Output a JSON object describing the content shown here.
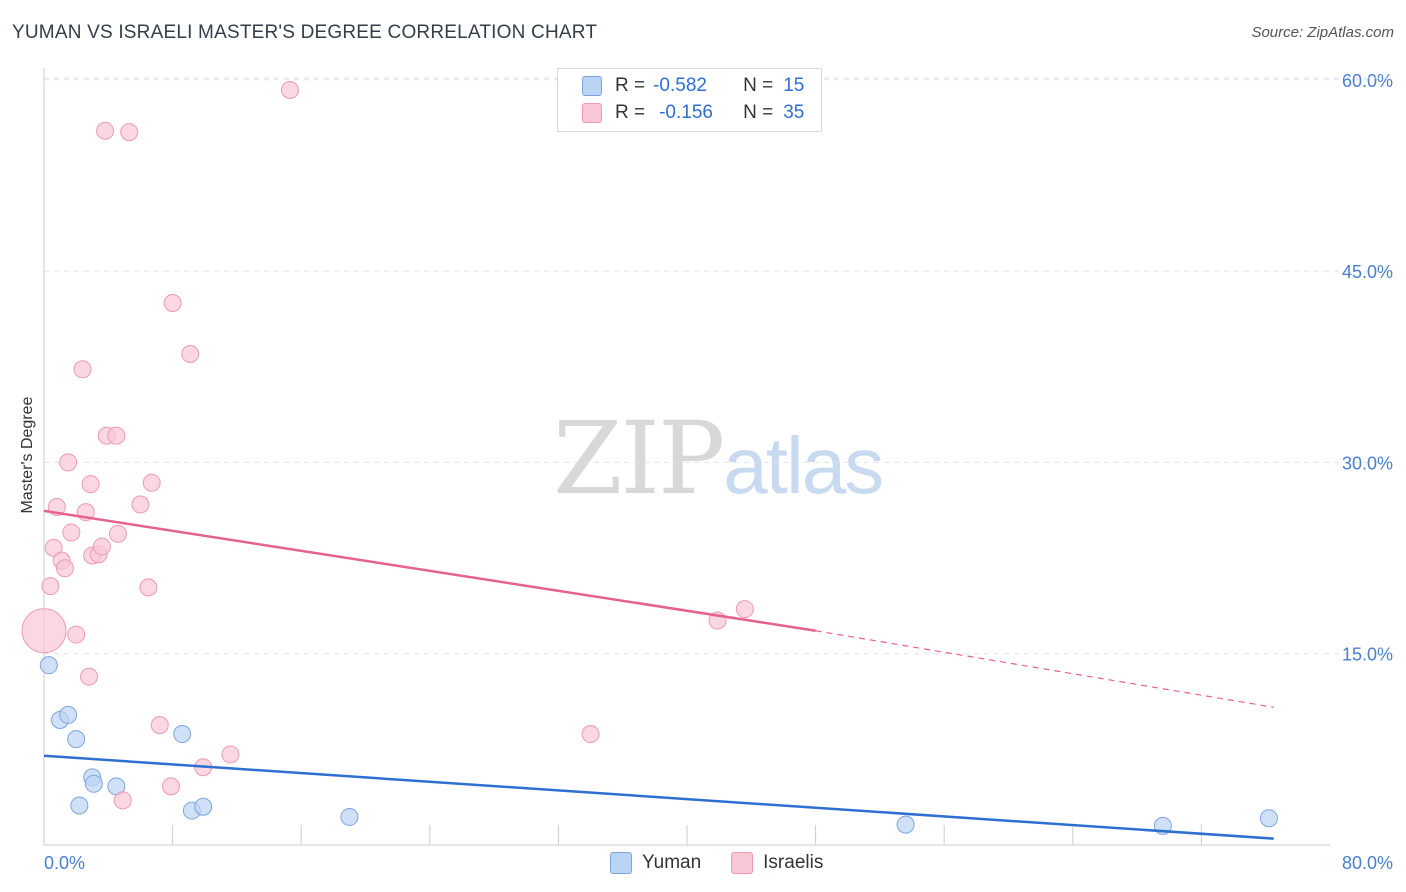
{
  "header": {
    "title": "YUMAN VS ISRAELI MASTER'S DEGREE CORRELATION CHART",
    "source": "Source: ZipAtlas.com"
  },
  "watermark": {
    "zip": "ZIP",
    "atlas": "atlas"
  },
  "legend": {
    "r_label": "R =",
    "n_label": "N =",
    "yuman": {
      "r": "-0.582",
      "n": "15"
    },
    "israelis": {
      "r": "-0.156",
      "n": "35"
    }
  },
  "colors": {
    "yuman_fill": "#bcd4f4",
    "yuman_stroke": "#7aa6e0",
    "yuman_line": "#2f6fd1",
    "israeli_fill": "#f9c6d5",
    "israeli_stroke": "#ec9ab2",
    "israeli_line": "#e5628e",
    "grid": "#dde3ea",
    "tick": "#4a7fd0"
  },
  "chart_data": {
    "type": "scatter",
    "title": "YUMAN VS ISRAELI MASTER'S DEGREE CORRELATION CHART",
    "xlabel": "",
    "ylabel": "Master's Degree",
    "xlim": [
      0,
      80
    ],
    "ylim": [
      0,
      62
    ],
    "x_tick_labels": [
      "0.0%",
      "80.0%"
    ],
    "y_ticks": [
      15,
      30,
      45,
      60
    ],
    "y_tick_labels": [
      "15.0%",
      "30.0%",
      "45.0%",
      "60.0%"
    ],
    "grid": true,
    "legend_position": "top-center",
    "series": [
      {
        "name": "Yuman",
        "points": [
          [
            0.3,
            14.1
          ],
          [
            1.0,
            9.8
          ],
          [
            1.5,
            10.2
          ],
          [
            2.0,
            8.3
          ],
          [
            2.2,
            3.1
          ],
          [
            3.0,
            5.3
          ],
          [
            3.1,
            4.8
          ],
          [
            4.5,
            4.6
          ],
          [
            8.6,
            8.7
          ],
          [
            9.2,
            2.7
          ],
          [
            9.9,
            3.0
          ],
          [
            19.0,
            2.2
          ],
          [
            53.6,
            1.6
          ],
          [
            69.6,
            1.5
          ],
          [
            76.2,
            2.1
          ]
        ],
        "trend": {
          "x0": 0,
          "y0": 7.0,
          "x1": 76.5,
          "y1": 0.5,
          "style": "solid"
        }
      },
      {
        "name": "Israelis",
        "points": [
          [
            0.0,
            16.8
          ],
          [
            0.4,
            20.3
          ],
          [
            0.6,
            23.3
          ],
          [
            0.8,
            26.5
          ],
          [
            1.1,
            22.3
          ],
          [
            1.3,
            21.7
          ],
          [
            1.5,
            30.0
          ],
          [
            1.7,
            24.5
          ],
          [
            2.0,
            16.5
          ],
          [
            2.4,
            37.3
          ],
          [
            2.6,
            26.1
          ],
          [
            2.8,
            13.2
          ],
          [
            2.9,
            28.3
          ],
          [
            3.0,
            22.7
          ],
          [
            3.4,
            22.8
          ],
          [
            3.6,
            23.4
          ],
          [
            3.8,
            56.0
          ],
          [
            3.9,
            32.1
          ],
          [
            4.5,
            32.1
          ],
          [
            4.6,
            24.4
          ],
          [
            4.9,
            3.5
          ],
          [
            5.3,
            55.9
          ],
          [
            6.0,
            26.7
          ],
          [
            6.5,
            20.2
          ],
          [
            6.7,
            28.4
          ],
          [
            7.2,
            9.4
          ],
          [
            7.9,
            4.6
          ],
          [
            8.0,
            42.5
          ],
          [
            9.1,
            38.5
          ],
          [
            9.9,
            6.1
          ],
          [
            11.6,
            7.1
          ],
          [
            15.3,
            59.2
          ],
          [
            34.0,
            8.7
          ],
          [
            41.9,
            17.6
          ],
          [
            43.6,
            18.5
          ]
        ],
        "sizes_note": "one large point at x=0",
        "trend": {
          "x0": 0,
          "y0": 26.2,
          "x1": 48,
          "y1": 16.8,
          "x_dash_end": 76.5,
          "y_dash_end": 10.8,
          "style": "solid-then-dashed"
        }
      }
    ]
  },
  "bottom_legend": {
    "yuman": "Yuman",
    "israelis": "Israelis"
  }
}
